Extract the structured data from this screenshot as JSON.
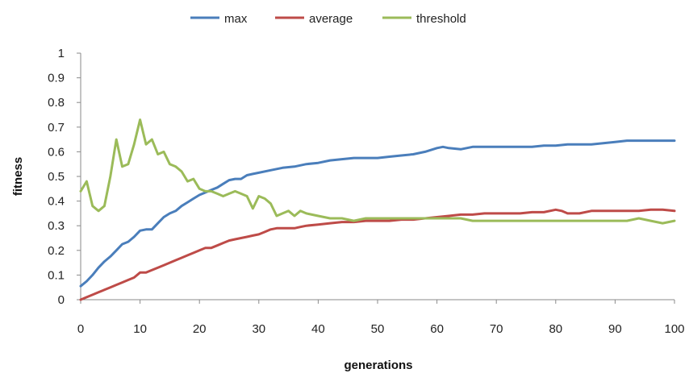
{
  "chart_data": {
    "type": "line",
    "xlabel": "generations",
    "ylabel": "fitness",
    "xlim": [
      0,
      100
    ],
    "ylim": [
      0,
      1
    ],
    "x_ticks": [
      "0",
      "10",
      "20",
      "30",
      "40",
      "50",
      "60",
      "70",
      "80",
      "90",
      "100"
    ],
    "y_ticks": [
      "0",
      "0.1",
      "0.2",
      "0.3",
      "0.4",
      "0.5",
      "0.6",
      "0.7",
      "0.8",
      "0.9",
      "1"
    ],
    "grid": false,
    "legend_position": "top",
    "series": [
      {
        "name": "max",
        "color": "#4a7ebb",
        "x": [
          0,
          1,
          2,
          3,
          4,
          5,
          6,
          7,
          8,
          9,
          10,
          11,
          12,
          13,
          14,
          15,
          16,
          17,
          18,
          19,
          20,
          21,
          22,
          23,
          24,
          25,
          26,
          27,
          28,
          29,
          30,
          32,
          34,
          36,
          38,
          40,
          42,
          44,
          46,
          48,
          50,
          52,
          54,
          56,
          58,
          60,
          61,
          62,
          64,
          66,
          68,
          70,
          72,
          74,
          76,
          78,
          80,
          82,
          84,
          86,
          88,
          90,
          92,
          94,
          96,
          98,
          100
        ],
        "y": [
          0.055,
          0.075,
          0.1,
          0.13,
          0.155,
          0.175,
          0.2,
          0.225,
          0.235,
          0.255,
          0.28,
          0.285,
          0.285,
          0.31,
          0.335,
          0.35,
          0.36,
          0.38,
          0.395,
          0.41,
          0.425,
          0.435,
          0.445,
          0.455,
          0.47,
          0.485,
          0.49,
          0.49,
          0.505,
          0.51,
          0.515,
          0.525,
          0.535,
          0.54,
          0.55,
          0.555,
          0.565,
          0.57,
          0.575,
          0.575,
          0.575,
          0.58,
          0.585,
          0.59,
          0.6,
          0.615,
          0.62,
          0.615,
          0.61,
          0.62,
          0.62,
          0.62,
          0.62,
          0.62,
          0.62,
          0.625,
          0.625,
          0.63,
          0.63,
          0.63,
          0.635,
          0.64,
          0.645,
          0.645,
          0.645,
          0.645,
          0.645
        ]
      },
      {
        "name": "average",
        "color": "#be4b48",
        "x": [
          0,
          1,
          2,
          3,
          4,
          5,
          6,
          7,
          8,
          9,
          10,
          11,
          12,
          13,
          14,
          15,
          16,
          17,
          18,
          19,
          20,
          21,
          22,
          23,
          24,
          25,
          26,
          27,
          28,
          29,
          30,
          31,
          32,
          33,
          34,
          35,
          36,
          37,
          38,
          40,
          42,
          44,
          46,
          48,
          50,
          52,
          54,
          56,
          58,
          60,
          62,
          64,
          66,
          68,
          70,
          72,
          74,
          76,
          78,
          80,
          81,
          82,
          84,
          86,
          88,
          90,
          92,
          94,
          96,
          98,
          100
        ],
        "y": [
          0.0,
          0.01,
          0.02,
          0.03,
          0.04,
          0.05,
          0.06,
          0.07,
          0.08,
          0.09,
          0.11,
          0.11,
          0.12,
          0.13,
          0.14,
          0.15,
          0.16,
          0.17,
          0.18,
          0.19,
          0.2,
          0.21,
          0.21,
          0.22,
          0.23,
          0.24,
          0.245,
          0.25,
          0.255,
          0.26,
          0.265,
          0.275,
          0.285,
          0.29,
          0.29,
          0.29,
          0.29,
          0.295,
          0.3,
          0.305,
          0.31,
          0.315,
          0.315,
          0.32,
          0.32,
          0.32,
          0.325,
          0.325,
          0.33,
          0.335,
          0.34,
          0.345,
          0.345,
          0.35,
          0.35,
          0.35,
          0.35,
          0.355,
          0.355,
          0.365,
          0.36,
          0.35,
          0.35,
          0.36,
          0.36,
          0.36,
          0.36,
          0.36,
          0.365,
          0.365,
          0.36
        ]
      },
      {
        "name": "threshold",
        "color": "#9bbb59",
        "x": [
          0,
          1,
          2,
          3,
          4,
          5,
          6,
          7,
          8,
          9,
          10,
          11,
          12,
          13,
          14,
          15,
          16,
          17,
          18,
          19,
          20,
          21,
          22,
          23,
          24,
          25,
          26,
          27,
          28,
          29,
          30,
          31,
          32,
          33,
          34,
          35,
          36,
          37,
          38,
          40,
          42,
          44,
          46,
          48,
          50,
          52,
          54,
          56,
          58,
          60,
          62,
          64,
          66,
          68,
          70,
          72,
          74,
          76,
          78,
          80,
          82,
          84,
          86,
          88,
          90,
          92,
          94,
          96,
          98,
          100
        ],
        "y": [
          0.44,
          0.48,
          0.38,
          0.36,
          0.38,
          0.5,
          0.65,
          0.54,
          0.55,
          0.63,
          0.73,
          0.63,
          0.65,
          0.59,
          0.6,
          0.55,
          0.54,
          0.52,
          0.48,
          0.49,
          0.45,
          0.44,
          0.44,
          0.43,
          0.42,
          0.43,
          0.44,
          0.43,
          0.42,
          0.37,
          0.42,
          0.41,
          0.39,
          0.34,
          0.35,
          0.36,
          0.34,
          0.36,
          0.35,
          0.34,
          0.33,
          0.33,
          0.32,
          0.33,
          0.33,
          0.33,
          0.33,
          0.33,
          0.33,
          0.33,
          0.33,
          0.33,
          0.32,
          0.32,
          0.32,
          0.32,
          0.32,
          0.32,
          0.32,
          0.32,
          0.32,
          0.32,
          0.32,
          0.32,
          0.32,
          0.32,
          0.33,
          0.32,
          0.31,
          0.32
        ]
      }
    ]
  }
}
